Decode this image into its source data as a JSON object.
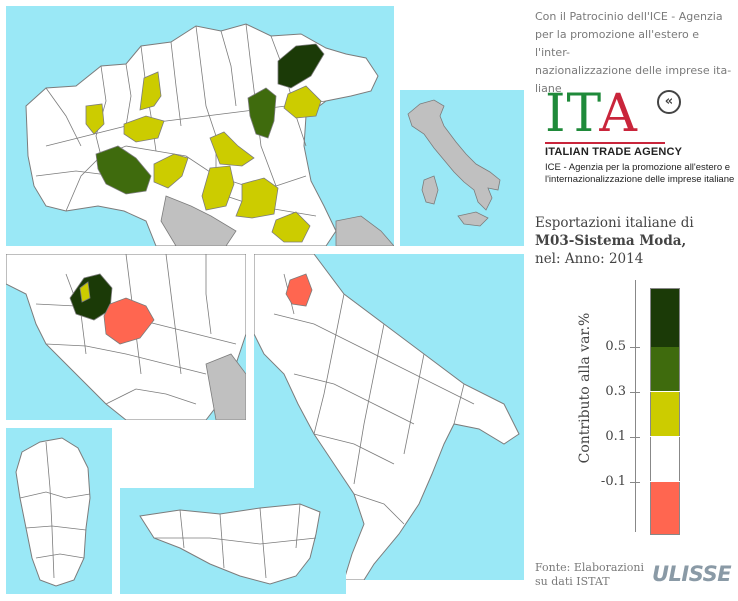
{
  "sponsor": {
    "lines": [
      "Con il Patrocinio dell'ICE - Agenzia",
      "per la promozione all'estero e l'inter-",
      "nazionalizzazione delle imprese ita-",
      "liane"
    ]
  },
  "logo": {
    "letters_i": "I",
    "letters_t": "T",
    "letters_a": "A",
    "arrow_glyph": "«",
    "name": "ITALIAN TRADE AGENCY",
    "sub1": "ICE - Agenzia per la promozione all'estero e",
    "sub2": "l'internazionalizzazione delle imprese italiane"
  },
  "title": {
    "line1": "Esportazioni italiane di",
    "line2": "M03-Sistema Moda,",
    "line3": "nel: Anno: 2014"
  },
  "legend": {
    "title": "Contributo alla var.%",
    "ticks": [
      "0.5",
      "0.3",
      "0.1",
      "-0.1"
    ],
    "classes": [
      {
        "color": "#1b3a07"
      },
      {
        "color": "#3f6b0d"
      },
      {
        "color": "#cccc00"
      },
      {
        "color": "#ffffff"
      },
      {
        "color": "#ff6650"
      }
    ]
  },
  "source": {
    "line1": "Fonte: Elaborazioni",
    "line2": "su dati ISTAT"
  },
  "brand": "ULISSE",
  "colors": {
    "sea": "#9ae8f6",
    "land_other": "#c0c0c0",
    "land_neutral": "#ffffff",
    "border": "#7c7c7c"
  }
}
